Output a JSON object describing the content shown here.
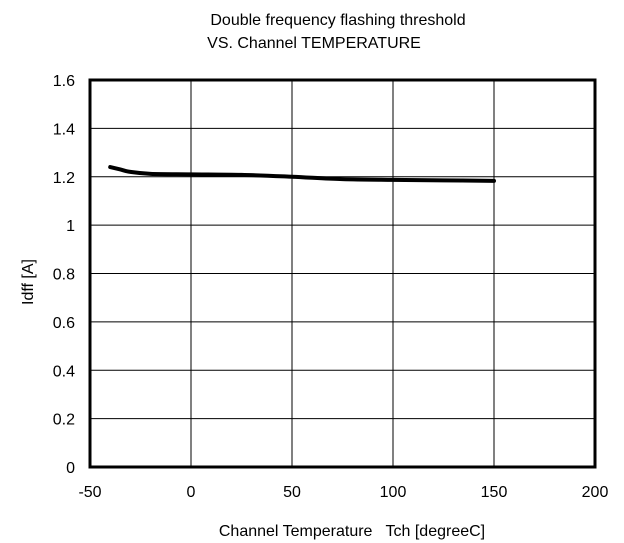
{
  "chart_data": {
    "type": "line",
    "title_lines": [
      "Double frequency flashing threshold",
      "VS. Channel TEMPERATURE"
    ],
    "xlabel": "Channel Temperature   Tch [degreeC]",
    "ylabel": "Idff [A]",
    "xlim": [
      -50,
      200
    ],
    "ylim": [
      0,
      1.6
    ],
    "x_ticks": [
      -50,
      0,
      50,
      100,
      150,
      200
    ],
    "x_tick_labels": [
      "-50",
      "0",
      "50",
      "100",
      "150",
      "200"
    ],
    "y_ticks": [
      0,
      0.2,
      0.4,
      0.6,
      0.8,
      1,
      1.2,
      1.4,
      1.6
    ],
    "y_tick_labels": [
      "0",
      "0.2",
      "0.4",
      "0.6",
      "0.8",
      "1",
      "1.2",
      "1.4",
      "1.6"
    ],
    "grid": true,
    "legend": "none",
    "series": [
      {
        "color": "#000000",
        "points": [
          {
            "x": -40,
            "y": 1.24
          },
          {
            "x": -35,
            "y": 1.23
          },
          {
            "x": -30,
            "y": 1.22
          },
          {
            "x": -20,
            "y": 1.212
          },
          {
            "x": 0,
            "y": 1.21
          },
          {
            "x": 25,
            "y": 1.208
          },
          {
            "x": 50,
            "y": 1.2
          },
          {
            "x": 75,
            "y": 1.19
          },
          {
            "x": 100,
            "y": 1.187
          },
          {
            "x": 125,
            "y": 1.185
          },
          {
            "x": 150,
            "y": 1.183
          }
        ]
      }
    ]
  }
}
